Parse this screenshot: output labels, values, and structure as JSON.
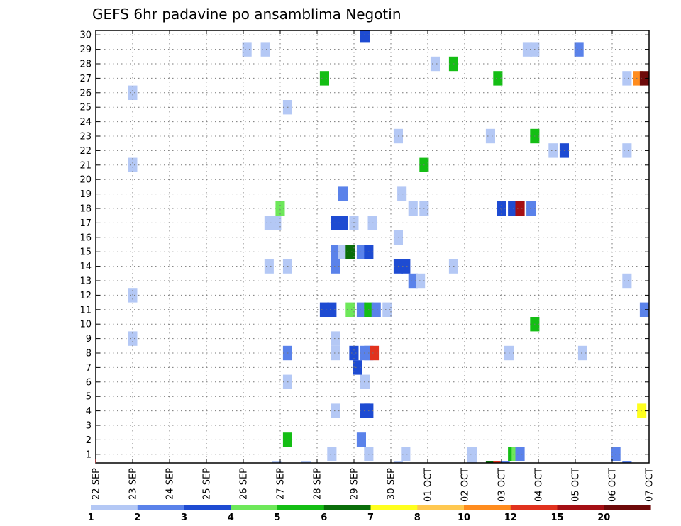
{
  "chart_data": {
    "type": "heatmap",
    "title": "GEFS 6hr padavine po ansamblima Negotin",
    "xlabel": "",
    "ylabel": "",
    "grid": true,
    "x_tick_labels": [
      "22 SEP",
      "23 SEP",
      "24 SEP",
      "25 SEP",
      "26 SEP",
      "27 SEP",
      "28 SEP",
      "29 SEP",
      "30 SEP",
      "01 OCT",
      "02 OCT",
      "03 OCT",
      "04 OCT",
      "05 OCT",
      "06 OCT",
      "07 OCT"
    ],
    "xlim_days": [
      0,
      15
    ],
    "y_tick_labels": [
      "1",
      "2",
      "3",
      "4",
      "5",
      "6",
      "7",
      "8",
      "9",
      "10",
      "11",
      "12",
      "13",
      "14",
      "15",
      "16",
      "17",
      "18",
      "19",
      "20",
      "21",
      "22",
      "23",
      "24",
      "25",
      "26",
      "27",
      "28",
      "29",
      "30"
    ],
    "ylim": [
      0,
      30
    ],
    "colorbar": {
      "labels": [
        "1",
        "2",
        "3",
        "4",
        "5",
        "6",
        "7",
        "8",
        "10",
        "12",
        "15",
        "20"
      ],
      "colors": [
        "#b4c8f5",
        "#5a82ea",
        "#1e4bd2",
        "#6ee85a",
        "#14be14",
        "#0a6e0a",
        "#ffff1e",
        "#ffc850",
        "#ff8c1e",
        "#e1321e",
        "#a50f14",
        "#6e0a0a"
      ]
    },
    "cells": [
      {
        "t": 6.4,
        "m": 0,
        "c": 0
      },
      {
        "t": 7.4,
        "m": 0,
        "c": 0
      },
      {
        "t": 8.4,
        "m": 0,
        "c": 0
      },
      {
        "t": 10.2,
        "m": 0,
        "c": 0
      },
      {
        "t": 11.3,
        "m": 0,
        "c": 4
      },
      {
        "t": 11.4,
        "m": 0,
        "c": 3
      },
      {
        "t": 11.5,
        "m": 0,
        "c": 1
      },
      {
        "t": 14.1,
        "m": 0,
        "c": 1
      },
      {
        "t": 5.2,
        "m": 1,
        "c": 4
      },
      {
        "t": 7.2,
        "m": 1,
        "c": 1
      },
      {
        "t": 6.5,
        "m": 3,
        "c": 0
      },
      {
        "t": 7.3,
        "m": 3,
        "c": 2
      },
      {
        "t": 7.4,
        "m": 3,
        "c": 2
      },
      {
        "t": 14.8,
        "m": 3,
        "c": 6
      },
      {
        "t": 5.2,
        "m": 5,
        "c": 0
      },
      {
        "t": 7.3,
        "m": 5,
        "c": 0
      },
      {
        "t": 7.1,
        "m": 6,
        "c": 2
      },
      {
        "t": 5.2,
        "m": 7,
        "c": 1
      },
      {
        "t": 6.5,
        "m": 7,
        "c": 0
      },
      {
        "t": 7.0,
        "m": 7,
        "c": 2
      },
      {
        "t": 7.3,
        "m": 7,
        "c": 1
      },
      {
        "t": 7.4,
        "m": 7,
        "c": 1
      },
      {
        "t": 7.55,
        "m": 7,
        "c": 9
      },
      {
        "t": 11.2,
        "m": 7,
        "c": 0
      },
      {
        "t": 13.2,
        "m": 7,
        "c": 0
      },
      {
        "t": 6.5,
        "m": 8,
        "c": 0
      },
      {
        "t": 1.0,
        "m": 8,
        "c": 0
      },
      {
        "t": 11.9,
        "m": 9,
        "c": 4
      },
      {
        "t": 6.2,
        "m": 10,
        "c": 2
      },
      {
        "t": 6.4,
        "m": 10,
        "c": 2
      },
      {
        "t": 6.9,
        "m": 10,
        "c": 3
      },
      {
        "t": 7.2,
        "m": 10,
        "c": 1
      },
      {
        "t": 7.4,
        "m": 10,
        "c": 4
      },
      {
        "t": 7.6,
        "m": 10,
        "c": 1
      },
      {
        "t": 7.9,
        "m": 10,
        "c": 0
      },
      {
        "t": 14.95,
        "m": 10,
        "c": 1
      },
      {
        "t": 1.0,
        "m": 11,
        "c": 0
      },
      {
        "t": 8.6,
        "m": 12,
        "c": 1
      },
      {
        "t": 8.8,
        "m": 12,
        "c": 0
      },
      {
        "t": 14.4,
        "m": 12,
        "c": 0
      },
      {
        "t": 4.7,
        "m": 13,
        "c": 0
      },
      {
        "t": 5.2,
        "m": 13,
        "c": 0
      },
      {
        "t": 6.5,
        "m": 13,
        "c": 1
      },
      {
        "t": 8.2,
        "m": 13,
        "c": 2
      },
      {
        "t": 8.4,
        "m": 13,
        "c": 2
      },
      {
        "t": 9.7,
        "m": 13,
        "c": 0
      },
      {
        "t": 6.5,
        "m": 14,
        "c": 1
      },
      {
        "t": 6.7,
        "m": 14,
        "c": 0
      },
      {
        "t": 6.9,
        "m": 14,
        "c": 5
      },
      {
        "t": 7.2,
        "m": 14,
        "c": 1
      },
      {
        "t": 7.4,
        "m": 14,
        "c": 2
      },
      {
        "t": 8.2,
        "m": 15,
        "c": 0
      },
      {
        "t": 4.7,
        "m": 16,
        "c": 0
      },
      {
        "t": 4.9,
        "m": 16,
        "c": 0
      },
      {
        "t": 6.5,
        "m": 16,
        "c": 2
      },
      {
        "t": 6.7,
        "m": 16,
        "c": 2
      },
      {
        "t": 7.0,
        "m": 16,
        "c": 0
      },
      {
        "t": 7.5,
        "m": 16,
        "c": 0
      },
      {
        "t": 5.0,
        "m": 17,
        "c": 3
      },
      {
        "t": 8.6,
        "m": 17,
        "c": 0
      },
      {
        "t": 8.9,
        "m": 17,
        "c": 0
      },
      {
        "t": 11.0,
        "m": 17,
        "c": 2
      },
      {
        "t": 11.3,
        "m": 17,
        "c": 2
      },
      {
        "t": 11.5,
        "m": 17,
        "c": 10
      },
      {
        "t": 11.8,
        "m": 17,
        "c": 1
      },
      {
        "t": 6.7,
        "m": 18,
        "c": 1
      },
      {
        "t": 8.3,
        "m": 18,
        "c": 0
      },
      {
        "t": 8.9,
        "m": 20,
        "c": 4
      },
      {
        "t": 1.0,
        "m": 20,
        "c": 0
      },
      {
        "t": 12.4,
        "m": 21,
        "c": 0
      },
      {
        "t": 12.7,
        "m": 21,
        "c": 2
      },
      {
        "t": 14.4,
        "m": 21,
        "c": 0
      },
      {
        "t": 8.2,
        "m": 22,
        "c": 0
      },
      {
        "t": 10.7,
        "m": 22,
        "c": 0
      },
      {
        "t": 11.9,
        "m": 22,
        "c": 4
      },
      {
        "t": 5.2,
        "m": 24,
        "c": 0
      },
      {
        "t": 1.0,
        "m": 25,
        "c": 0
      },
      {
        "t": 6.2,
        "m": 26,
        "c": 4
      },
      {
        "t": 10.9,
        "m": 26,
        "c": 4
      },
      {
        "t": 14.4,
        "m": 26,
        "c": 0
      },
      {
        "t": 14.7,
        "m": 26,
        "c": 8
      },
      {
        "t": 14.95,
        "m": 26,
        "c": 11
      },
      {
        "t": 9.2,
        "m": 27,
        "c": 0
      },
      {
        "t": 9.7,
        "m": 27,
        "c": 4
      },
      {
        "t": 4.1,
        "m": 28,
        "c": 0
      },
      {
        "t": 4.6,
        "m": 28,
        "c": 0
      },
      {
        "t": 11.7,
        "m": 28,
        "c": 0
      },
      {
        "t": 11.9,
        "m": 28,
        "c": 0
      },
      {
        "t": 13.1,
        "m": 28,
        "c": 1
      },
      {
        "t": 7.3,
        "m": 29,
        "c": 2
      },
      {
        "t": 4.9,
        "m": -1,
        "c": 0
      },
      {
        "t": 5.7,
        "m": -1,
        "c": 0
      },
      {
        "t": 8.2,
        "m": -1,
        "c": 0
      },
      {
        "t": 10.2,
        "m": -1,
        "c": 0
      },
      {
        "t": 10.7,
        "m": -1,
        "c": 5
      },
      {
        "t": 10.9,
        "m": -1,
        "c": 9
      },
      {
        "t": 11.1,
        "m": -1,
        "c": 1
      },
      {
        "t": 14.4,
        "m": -1,
        "c": 1
      }
    ]
  }
}
